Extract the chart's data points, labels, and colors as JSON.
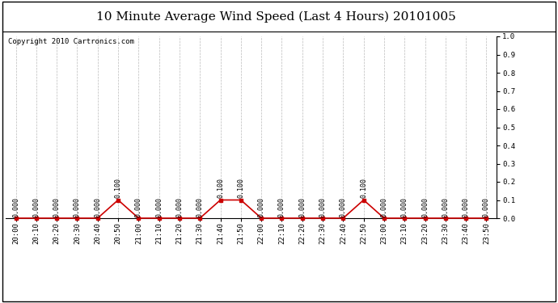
{
  "title": "10 Minute Average Wind Speed (Last 4 Hours) 20101005",
  "copyright_text": "Copyright 2010 Cartronics.com",
  "background_color": "#ffffff",
  "plot_background_color": "#ffffff",
  "line_color": "#cc0000",
  "grid_color": "#bbbbbb",
  "time_labels": [
    "20:00",
    "20:10",
    "20:20",
    "20:30",
    "20:40",
    "20:50",
    "21:00",
    "21:10",
    "21:20",
    "21:30",
    "21:40",
    "21:50",
    "22:00",
    "22:10",
    "22:20",
    "22:30",
    "22:40",
    "22:50",
    "23:00",
    "23:10",
    "23:20",
    "23:30",
    "23:40",
    "23:50"
  ],
  "values": [
    0.0,
    0.0,
    0.0,
    0.0,
    0.0,
    0.1,
    0.0,
    0.0,
    0.0,
    0.0,
    0.1,
    0.1,
    0.0,
    0.0,
    0.0,
    0.0,
    0.0,
    0.1,
    0.0,
    0.0,
    0.0,
    0.0,
    0.0,
    0.0
  ],
  "ylim": [
    0.0,
    1.0
  ],
  "yticks": [
    0.0,
    0.1,
    0.2,
    0.3,
    0.4,
    0.5,
    0.6,
    0.7,
    0.8,
    0.9,
    1.0
  ],
  "title_fontsize": 11,
  "copyright_fontsize": 6.5,
  "tick_fontsize": 6.5,
  "data_label_fontsize": 6.0,
  "border_color": "#000000"
}
